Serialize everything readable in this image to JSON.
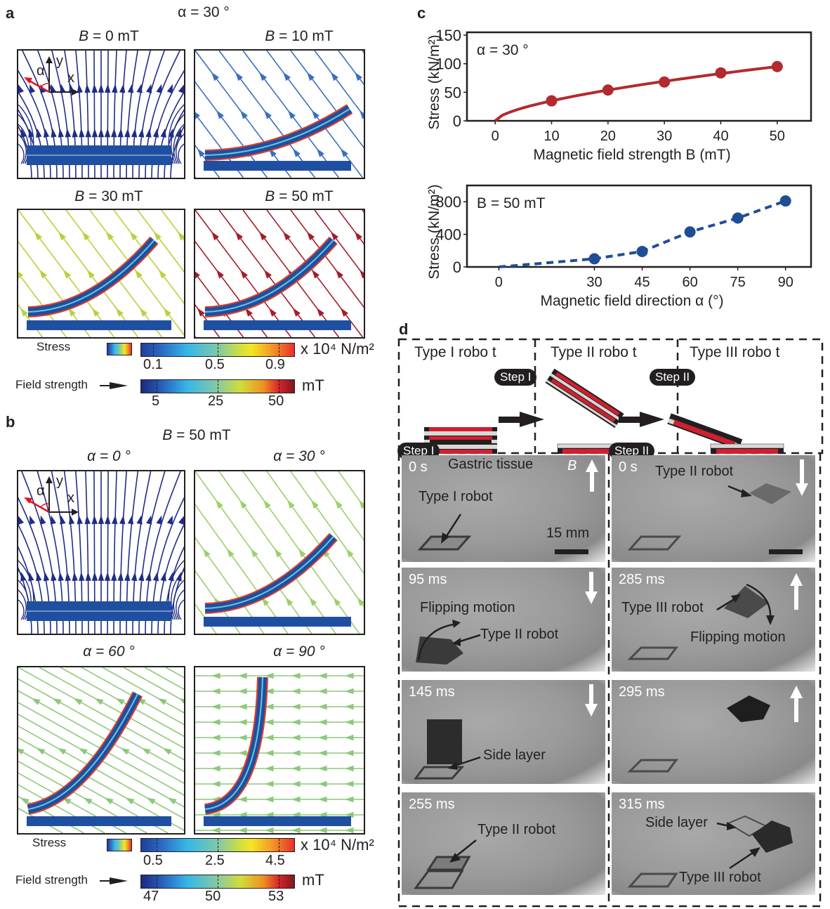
{
  "panel_labels": {
    "a": "a",
    "b": "b",
    "c": "c",
    "d": "d"
  },
  "panel_a": {
    "header": "α = 30 °",
    "subplots": [
      {
        "title_var": "B",
        "title_rest": " = 0 mT",
        "field_color": "#1f2d86"
      },
      {
        "title_var": "B",
        "title_rest": " = 10 mT",
        "field_color": "#3a6fc0"
      },
      {
        "title_var": "B",
        "title_rest": " = 30 mT",
        "field_color": "#b6d33b"
      },
      {
        "title_var": "B",
        "title_rest": " = 50 mT",
        "field_color": "#a51d2b"
      }
    ],
    "axes_inset": {
      "y": "y",
      "x": "x",
      "alpha": "α"
    },
    "stress_colorbar": {
      "label": "Stress",
      "ticks": [
        "0.1",
        "0.5",
        "0.9"
      ],
      "unit": "x 10⁴ N/m²"
    },
    "field_colorbar": {
      "label": "Field strength",
      "ticks": [
        "5",
        "25",
        "50"
      ],
      "unit": "mT"
    }
  },
  "panel_b": {
    "header_var": "B",
    "header_rest": " = 50 mT",
    "subplots": [
      {
        "title": "α = 0 °"
      },
      {
        "title": "α = 30 °"
      },
      {
        "title": "α = 60 °"
      },
      {
        "title": "α = 90 °"
      }
    ],
    "axes_inset": {
      "y": "y",
      "x": "x",
      "alpha": "α"
    },
    "stress_colorbar": {
      "label": "Stress",
      "ticks": [
        "0.5",
        "2.5",
        "4.5"
      ],
      "unit": "x 10⁴ N/m²"
    },
    "field_colorbar": {
      "label": "Field strength",
      "ticks": [
        "47",
        "50",
        "53"
      ],
      "unit": "mT"
    }
  },
  "chart_data": [
    {
      "type": "line",
      "title": "",
      "annotation": "α = 30 °",
      "xlabel": "Magnetic field strength B (mT)",
      "ylabel": "Stress (kN/m²)",
      "x": [
        10,
        20,
        30,
        40,
        50
      ],
      "series": [
        {
          "name": "α = 30 °",
          "values": [
            35,
            54,
            68,
            84,
            95
          ],
          "color": "#b22a2e",
          "line": "solid",
          "fit_from_origin": true
        }
      ],
      "xticks": [
        "0",
        "10",
        "20",
        "30",
        "40",
        "50"
      ],
      "yticks": [
        "0",
        "50",
        "100",
        "150"
      ],
      "xlim": [
        -5,
        56
      ],
      "ylim": [
        0,
        155
      ],
      "grid": false
    },
    {
      "type": "line",
      "title": "",
      "annotation": "B = 50 mT",
      "xlabel": "Magnetic field direction α (°)",
      "ylabel": "Stress (kN/m²)",
      "x": [
        30,
        45,
        60,
        75,
        90
      ],
      "series": [
        {
          "name": "B = 50 mT",
          "values": [
            100,
            190,
            430,
            600,
            810
          ],
          "color": "#1f4e96",
          "line": "dashed",
          "fit_from_origin": true
        }
      ],
      "xticks": [
        "0",
        "30",
        "45",
        "60",
        "75",
        "90"
      ],
      "yticks": [
        "0",
        "400",
        "800"
      ],
      "xlim": [
        -10,
        98
      ],
      "ylim": [
        0,
        1000
      ],
      "grid": false
    }
  ],
  "panel_d": {
    "stages": [
      "Type I robo t",
      "Type II robo t",
      "Type III robo t"
    ],
    "step1": "Step I",
    "step2": "Step II",
    "colors": {
      "magnet": "#d0202f",
      "spacer": "#d8d8d8",
      "frame": "#231f20"
    },
    "frames_left": [
      {
        "time": "0 s",
        "labels": [
          "Gastric tissue",
          "Type I robot",
          "15 mm"
        ],
        "field": "up",
        "field_label": "B"
      },
      {
        "time": "95 ms",
        "labels": [
          "Flipping motion",
          "Type II  robot"
        ],
        "field": "down"
      },
      {
        "time": "145 ms",
        "labels": [
          "Side layer"
        ],
        "field": "down"
      },
      {
        "time": "255 ms",
        "labels": [
          "Type II  robot"
        ],
        "field": "none"
      }
    ],
    "frames_right": [
      {
        "time": "0 s",
        "labels": [
          "Type II  robot"
        ],
        "field": "down"
      },
      {
        "time": "285 ms",
        "labels": [
          "Type III  robot",
          "Flipping motion"
        ],
        "field": "up"
      },
      {
        "time": "295 ms",
        "labels": [],
        "field": "up"
      },
      {
        "time": "315 ms",
        "labels": [
          "Side layer",
          "Type III  robot"
        ],
        "field": "none"
      }
    ]
  }
}
